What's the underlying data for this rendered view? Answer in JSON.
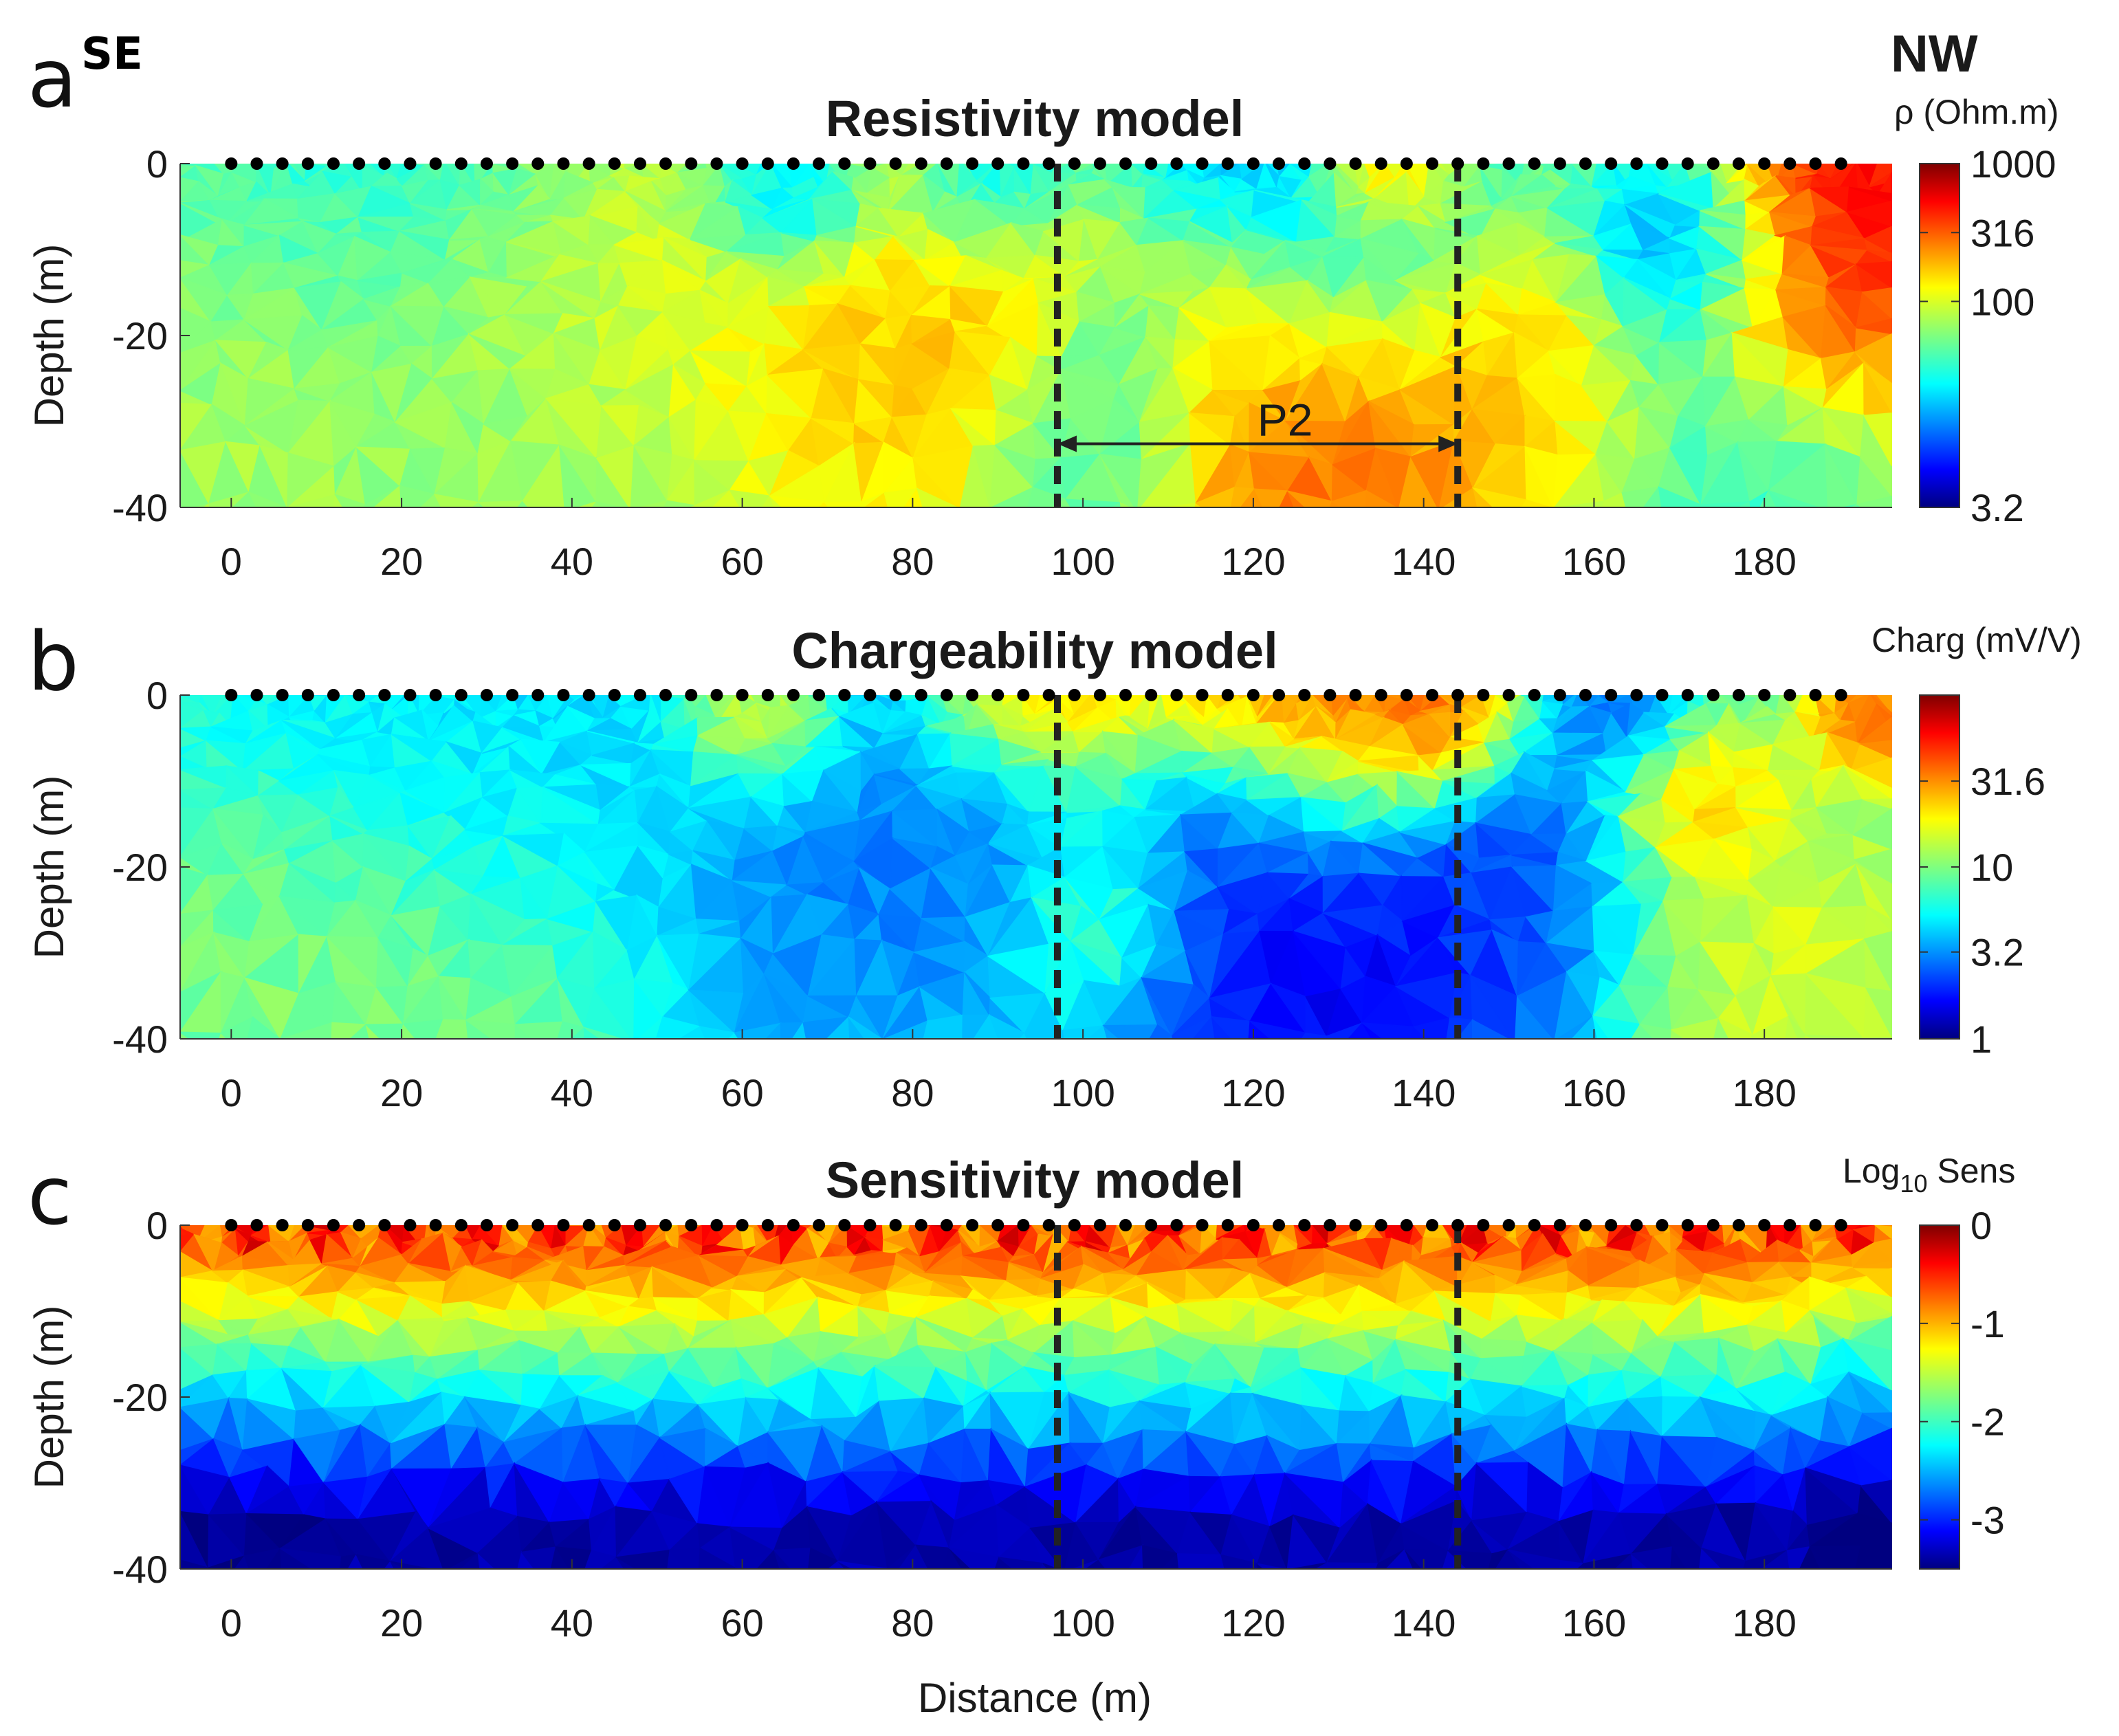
{
  "figure": {
    "direction_left": "SE",
    "direction_right": "NW",
    "xlabel": "Distance (m)"
  },
  "colors": {
    "jet": [
      "#00007f",
      "#0000ff",
      "#007fff",
      "#00ffff",
      "#7fff7f",
      "#ffff00",
      "#ff7f00",
      "#ff0000",
      "#7f0000"
    ],
    "electrode": "#000000",
    "boundary": "#222222"
  },
  "annotation": {
    "label": "P2",
    "x_start": 97,
    "x_end": 144
  },
  "chart_data": [
    {
      "type": "heatmap",
      "panel": "a",
      "title": "Resistivity model",
      "xlabel": "",
      "ylabel": "Depth (m)",
      "xlim": [
        -6,
        195
      ],
      "ylim": [
        -40,
        0
      ],
      "xticks": [
        "0",
        "20",
        "40",
        "60",
        "80",
        "100",
        "120",
        "140",
        "160",
        "180"
      ],
      "yticks": [
        "0",
        "-20",
        "-40"
      ],
      "colorbar": {
        "label": "ρ (Ohm.m)",
        "scale": "log",
        "range": [
          3.2,
          1000
        ],
        "ticks": [
          "1000",
          "316",
          "100",
          "3.2"
        ]
      },
      "boundaries_x": [
        97,
        144
      ],
      "electrodes": {
        "start": 0,
        "end": 189,
        "spacing": 3
      },
      "anomalies": [
        {
          "x": 20,
          "z": -22,
          "value": 0.58,
          "r": 18
        },
        {
          "x": 45,
          "z": -15,
          "value": 0.63,
          "r": 16
        },
        {
          "x": 80,
          "z": -22,
          "value": 0.72,
          "r": 14
        },
        {
          "x": 93,
          "z": -14,
          "value": 0.75,
          "r": 7
        },
        {
          "x": 30,
          "z": -36,
          "value": 0.48,
          "r": 14
        },
        {
          "x": 103,
          "z": -22,
          "value": 0.3,
          "r": 7
        },
        {
          "x": 100,
          "z": -35,
          "value": 0.38,
          "r": 8
        },
        {
          "x": 128,
          "z": -30,
          "value": 0.86,
          "r": 14
        },
        {
          "x": 118,
          "z": -20,
          "value": 0.78,
          "r": 9
        },
        {
          "x": 152,
          "z": -28,
          "value": 0.7,
          "r": 10
        },
        {
          "x": 125,
          "z": -8,
          "value": 0.14,
          "r": 12
        },
        {
          "x": 65,
          "z": -4,
          "value": 0.18,
          "r": 6
        },
        {
          "x": 90,
          "z": -5,
          "value": 0.22,
          "r": 6
        },
        {
          "x": 172,
          "z": -10,
          "value": 0.12,
          "r": 7
        },
        {
          "x": 188,
          "z": -5,
          "value": 0.97,
          "r": 10
        },
        {
          "x": 186,
          "z": -18,
          "value": 0.82,
          "r": 8
        },
        {
          "x": 135,
          "z": -1,
          "value": 0.9,
          "r": 5
        },
        {
          "x": 175,
          "z": -32,
          "value": 0.4,
          "r": 10
        },
        {
          "x": 20,
          "z": -3,
          "value": 0.3,
          "r": 14
        }
      ],
      "background": 0.5
    },
    {
      "type": "heatmap",
      "panel": "b",
      "title": "Chargeability model",
      "xlabel": "",
      "ylabel": "Depth (m)",
      "xlim": [
        -6,
        195
      ],
      "ylim": [
        -40,
        0
      ],
      "xticks": [
        "0",
        "20",
        "40",
        "60",
        "80",
        "100",
        "120",
        "140",
        "160",
        "180"
      ],
      "yticks": [
        "0",
        "-20",
        "-40"
      ],
      "colorbar": {
        "label": "Charg (mV/V)",
        "scale": "log",
        "range": [
          1,
          100
        ],
        "ticks": [
          "31.6",
          "10",
          "3.2",
          "1"
        ]
      },
      "boundaries_x": [
        97,
        144
      ],
      "electrodes": {
        "start": 0,
        "end": 189,
        "spacing": 3
      },
      "anomalies": [
        {
          "x": 30,
          "z": -10,
          "value": 0.32,
          "r": 16
        },
        {
          "x": 75,
          "z": -22,
          "value": 0.22,
          "r": 14
        },
        {
          "x": 92,
          "z": -15,
          "value": 0.18,
          "r": 7
        },
        {
          "x": 20,
          "z": -34,
          "value": 0.55,
          "r": 14
        },
        {
          "x": 0,
          "z": -28,
          "value": 0.5,
          "r": 8
        },
        {
          "x": 102,
          "z": -24,
          "value": 0.55,
          "r": 7
        },
        {
          "x": 128,
          "z": -30,
          "value": 0.04,
          "r": 14
        },
        {
          "x": 118,
          "z": -18,
          "value": 0.1,
          "r": 8
        },
        {
          "x": 150,
          "z": -25,
          "value": 0.15,
          "r": 10
        },
        {
          "x": 125,
          "z": -3,
          "value": 0.9,
          "r": 10
        },
        {
          "x": 95,
          "z": -3,
          "value": 0.8,
          "r": 7
        },
        {
          "x": 140,
          "z": -3,
          "value": 0.88,
          "r": 6
        },
        {
          "x": 172,
          "z": -12,
          "value": 0.75,
          "r": 5
        },
        {
          "x": 180,
          "z": -28,
          "value": 0.62,
          "r": 12
        },
        {
          "x": 163,
          "z": -3,
          "value": 0.2,
          "r": 5
        },
        {
          "x": 192,
          "z": -3,
          "value": 0.85,
          "r": 4
        },
        {
          "x": 62,
          "z": -3,
          "value": 0.7,
          "r": 5
        }
      ],
      "background": 0.42
    },
    {
      "type": "heatmap",
      "panel": "c",
      "title": "Sensitivity model",
      "xlabel": "Distance (m)",
      "ylabel": "Depth (m)",
      "xlim": [
        -6,
        195
      ],
      "ylim": [
        -40,
        0
      ],
      "xticks": [
        "0",
        "20",
        "40",
        "60",
        "80",
        "100",
        "120",
        "140",
        "160",
        "180"
      ],
      "yticks": [
        "0",
        "-20",
        "-40"
      ],
      "colorbar": {
        "label_main": "Log",
        "label_sub": "10",
        "label_rest": " Sens",
        "scale": "linear",
        "range": [
          -3.5,
          0
        ],
        "ticks": [
          "0",
          "-1",
          "-2",
          "-3"
        ]
      },
      "boundaries_x": [
        97,
        144
      ],
      "electrodes": {
        "start": 0,
        "end": 189,
        "spacing": 3
      },
      "anomalies": [],
      "background": 0.3
    }
  ]
}
